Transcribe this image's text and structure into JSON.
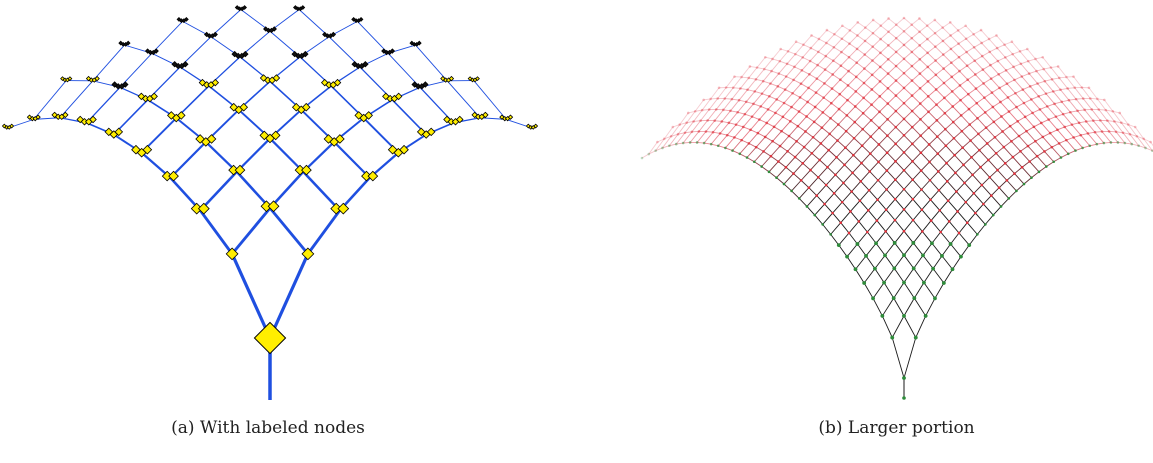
{
  "figure": {
    "panel_a": {
      "caption": "(a) With labeled nodes",
      "edge_color": "#1f4fe0",
      "node_color": "#ffee00",
      "far_node_color": "#111111"
    },
    "panel_b": {
      "caption": "(b) Larger portion",
      "edge_color": "#1a1a1a",
      "node_color_near": "#2e8b3a",
      "node_color_far": "#e0303a"
    }
  }
}
